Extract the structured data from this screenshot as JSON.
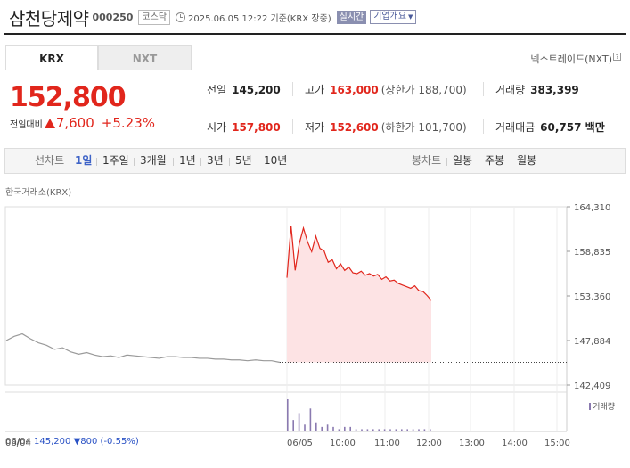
{
  "header": {
    "company_name": "삼천당제약",
    "code": "000250",
    "market": "코스닥",
    "datetime": "2025.06.05 12:22 기준(KRX 장중)",
    "realtime_label": "실시간",
    "overview_label": "기업개요"
  },
  "tabs": [
    {
      "label": "KRX",
      "active": true
    },
    {
      "label": "NXT",
      "active": false
    }
  ],
  "nxt_link": "넥스트레이드(NXT)",
  "quote": {
    "price": "152,800",
    "change_label": "전일대비",
    "change": "7,600",
    "change_pct": "+5.23%",
    "direction": "up"
  },
  "stats": {
    "prev_close": {
      "label": "전일",
      "value": "145,200"
    },
    "high": {
      "label": "고가",
      "value": "163,000",
      "sub": "(상한가 188,700)"
    },
    "volume": {
      "label": "거래량",
      "value": "383,399"
    },
    "open": {
      "label": "시가",
      "value": "157,800"
    },
    "low": {
      "label": "저가",
      "value": "152,600",
      "sub": "(하한가 101,700)"
    },
    "amount": {
      "label": "거래대금",
      "value": "60,757 백만"
    }
  },
  "chart_menu": {
    "line_label": "선차트",
    "periods": [
      "1일",
      "1주일",
      "3개월",
      "1년",
      "3년",
      "5년",
      "10년"
    ],
    "active_period": "1일",
    "candle_label": "봉차트",
    "candle_periods": [
      "일봉",
      "주봉",
      "월봉"
    ]
  },
  "chart_source_label": "한국거래소(KRX)",
  "colors": {
    "up": "#e1261c",
    "down": "#2a52c5",
    "prev_line": "#9a9a9a",
    "volume": "#8a7ab0",
    "accent": "#3e63c7"
  },
  "chart_data": {
    "type": "line",
    "y_ticks": [
      "164,310",
      "158,835",
      "153,360",
      "147,884",
      "142,409"
    ],
    "ylim": [
      142409,
      164310
    ],
    "x_ticks": [
      "06/04",
      "06/05",
      "10:00",
      "11:00",
      "12:00",
      "13:00",
      "14:00",
      "15:00"
    ],
    "reference_line": 145200,
    "series": [
      {
        "segment": "06/04",
        "values": [
          147884,
          148400,
          148700,
          148100,
          147600,
          147300,
          146800,
          147000,
          146500,
          146200,
          146400,
          146100,
          145900,
          146000,
          145800,
          146100,
          146000,
          145900,
          145800,
          145700,
          145900,
          145900,
          145800,
          145800,
          145700,
          145700,
          145600,
          145600,
          145500,
          145500,
          145400,
          145500,
          145400,
          145400,
          145200
        ]
      },
      {
        "segment": "06/05",
        "values": [
          155600,
          162000,
          156500,
          159800,
          161700,
          160000,
          158800,
          160700,
          159200,
          158900,
          157500,
          157800,
          156700,
          157300,
          156500,
          156900,
          156200,
          156100,
          156400,
          155900,
          156100,
          155800,
          156000,
          155400,
          155700,
          155200,
          155300,
          154900,
          154700,
          154500,
          154300,
          154600,
          154000,
          153900,
          153400,
          152800
        ]
      }
    ],
    "volume": [
      14,
      5,
      8,
      3,
      10,
      4,
      2,
      3,
      2,
      1,
      2,
      2,
      1,
      1,
      1,
      1,
      1,
      1,
      1,
      1,
      1,
      1,
      1,
      1,
      1,
      1
    ],
    "volume_label": "거래량"
  },
  "footer": {
    "date": "06/04",
    "close": "145,200",
    "change": "800",
    "change_pct": "(-0.55%)"
  }
}
